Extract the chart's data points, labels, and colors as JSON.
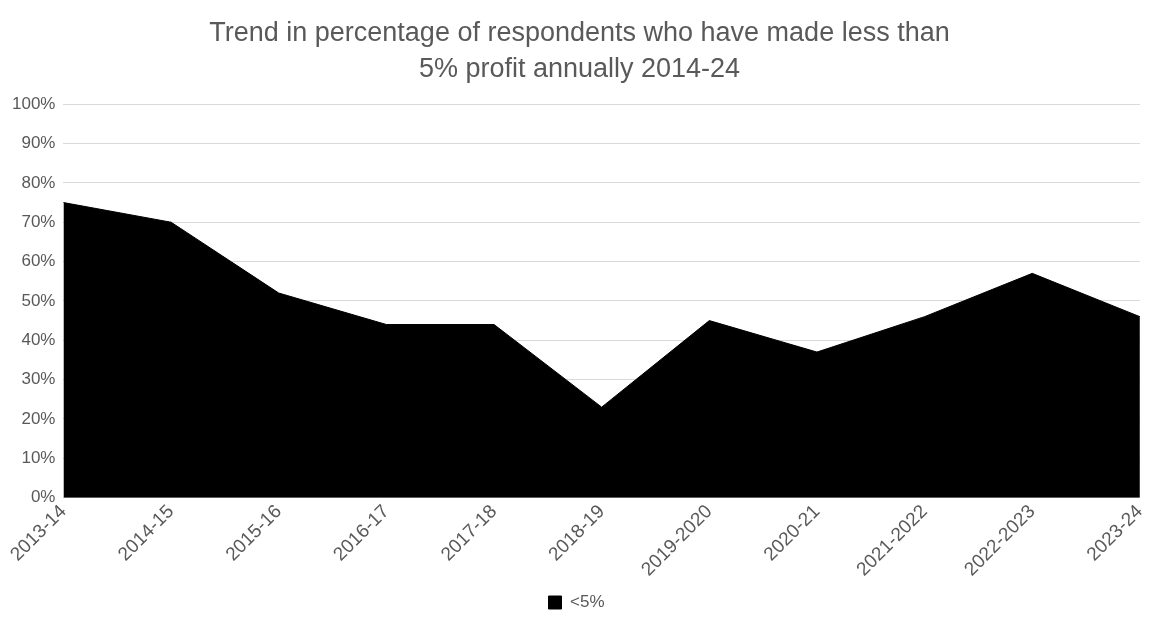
{
  "chart_data": {
    "type": "area",
    "title": "Trend in percentage of respondents who have made less than 5% profit annually 2014-24",
    "categories": [
      "2013-14",
      "2014-15",
      "2015-16",
      "2016-17",
      "2017-18",
      "2018-19",
      "2019-2020",
      "2020-21",
      "2021-2022",
      "2022-2023",
      "2023-24"
    ],
    "series": [
      {
        "name": "<5%",
        "color": "#000000",
        "values": [
          75,
          70,
          52,
          44,
          44,
          23,
          45,
          37,
          46,
          57,
          46
        ]
      }
    ],
    "ylim": [
      0,
      100
    ],
    "yticks": [
      {
        "value": 0,
        "label": "0%"
      },
      {
        "value": 10,
        "label": "10%"
      },
      {
        "value": 20,
        "label": "20%"
      },
      {
        "value": 30,
        "label": "30%"
      },
      {
        "value": 40,
        "label": "40%"
      },
      {
        "value": 50,
        "label": "50%"
      },
      {
        "value": 60,
        "label": "60%"
      },
      {
        "value": 70,
        "label": "70%"
      },
      {
        "value": 80,
        "label": "80%"
      },
      {
        "value": 90,
        "label": "90%"
      },
      {
        "value": 100,
        "label": "100%"
      }
    ],
    "grid": "y",
    "legend": "bottom"
  }
}
